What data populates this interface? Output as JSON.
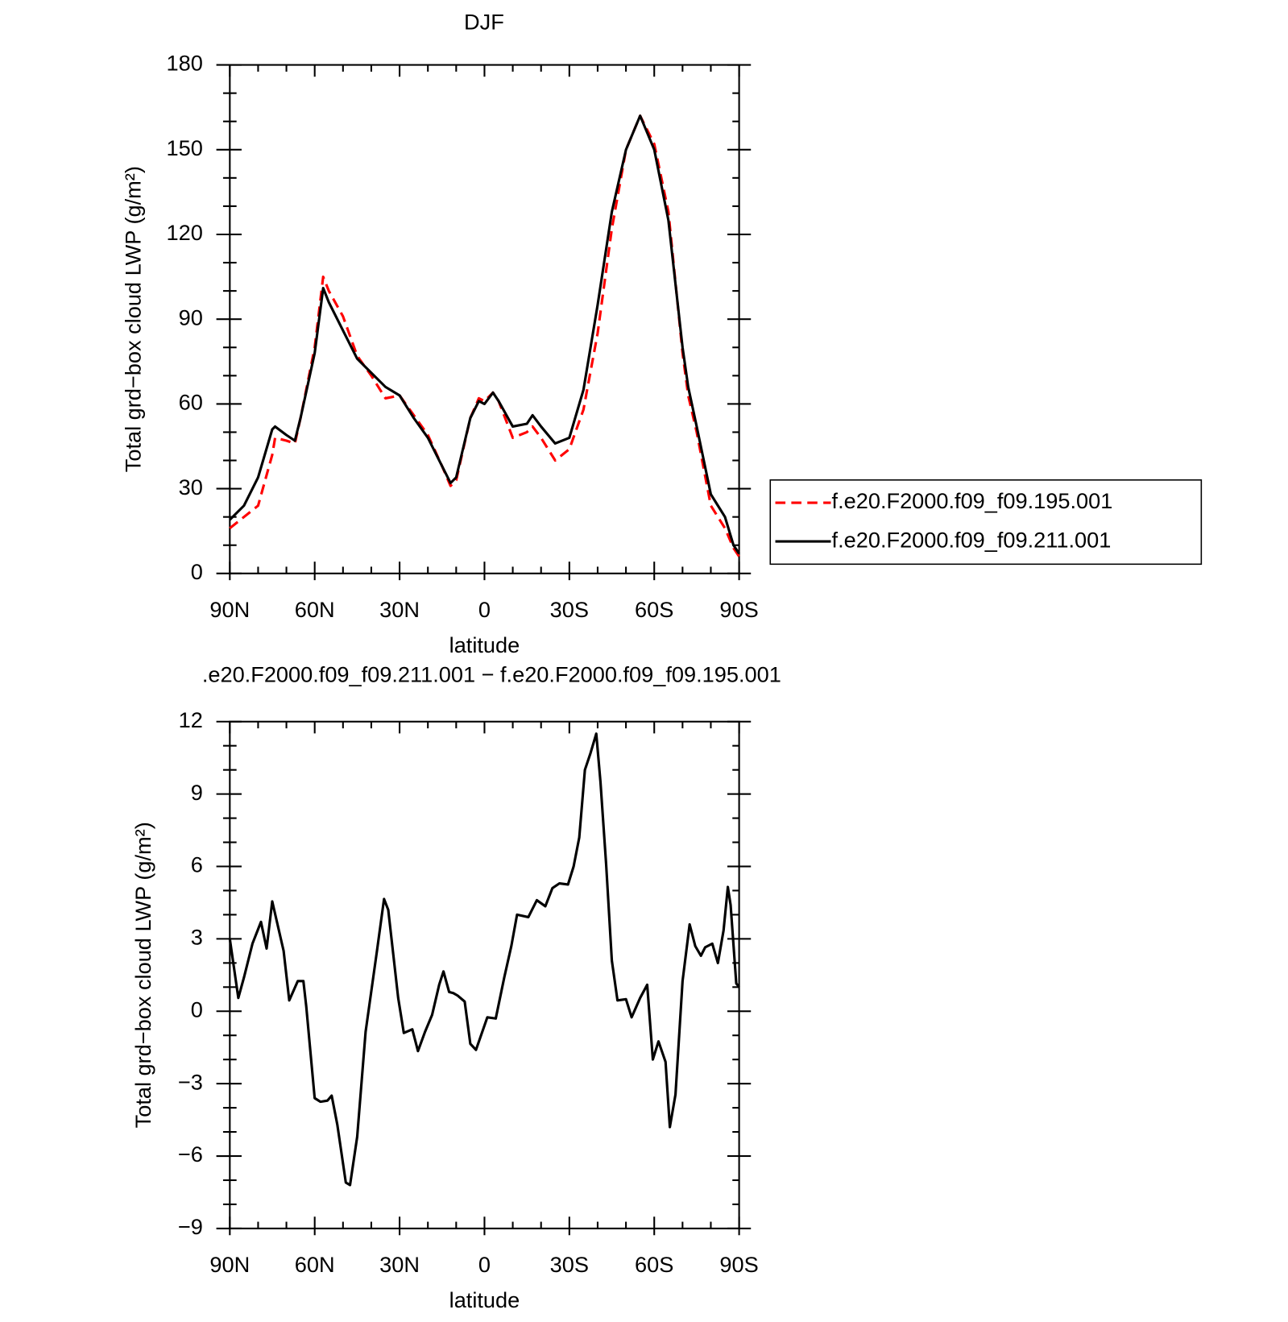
{
  "chart_data": [
    {
      "type": "line",
      "title": "DJF",
      "x_label": "latitude",
      "y_label": "Total grd−box cloud LWP (g/m²)",
      "x": [
        90,
        85,
        80,
        75,
        74,
        70,
        67,
        65,
        60,
        57,
        55,
        50,
        45,
        40,
        35,
        30,
        25,
        20,
        15,
        12,
        10,
        5,
        2,
        0,
        -3,
        -5,
        -10,
        -15,
        -17,
        -20,
        -25,
        -30,
        -35,
        -40,
        -45,
        -50,
        -55,
        -60,
        -65,
        -70,
        -72,
        -75,
        -80,
        -85,
        -88,
        -90
      ],
      "series": [
        {
          "name": "f.e20.F2000.f09_f09.195.001",
          "color": "#ff0000",
          "linestyle": "dashed",
          "values": [
            16,
            20,
            24,
            42,
            48,
            47,
            46,
            55,
            80,
            105,
            100,
            91,
            77,
            70,
            62,
            63,
            56,
            49,
            38,
            31,
            33,
            55,
            62,
            61,
            64,
            61,
            48,
            50,
            52,
            48,
            40,
            44,
            58,
            85,
            122,
            150,
            162,
            152,
            128,
            78,
            63,
            50,
            24,
            16,
            9,
            6
          ]
        },
        {
          "name": "f.e20.F2000.f09_f09.211.001",
          "color": "#000000",
          "linestyle": "solid",
          "values": [
            19,
            24,
            34,
            51,
            52,
            49,
            47,
            55,
            78,
            101,
            96,
            86,
            76,
            71,
            66,
            63,
            55,
            48,
            38,
            32,
            34,
            55,
            61,
            60,
            64,
            61,
            52,
            53,
            56,
            52,
            46,
            48,
            65,
            95,
            128,
            150,
            162,
            150,
            125,
            80,
            66,
            52,
            28,
            20,
            10,
            7
          ]
        }
      ],
      "xlim": [
        90,
        -90
      ],
      "xticks": [
        {
          "value": 90,
          "label": "90N"
        },
        {
          "value": 60,
          "label": "60N"
        },
        {
          "value": 30,
          "label": "30N"
        },
        0,
        {
          "value": -30,
          "label": "30S"
        },
        {
          "value": -60,
          "label": "60S"
        },
        {
          "value": -90,
          "label": "90S"
        }
      ],
      "ylim": [
        0,
        180
      ],
      "yticks": [
        0,
        30,
        60,
        90,
        120,
        150,
        180
      ],
      "legend": "right"
    },
    {
      "type": "line",
      "title": ".e20.F2000.f09_f09.211.001 − f.e20.F2000.f09_f09.195.001",
      "x_label": "latitude",
      "y_label": "Total grd−box cloud LWP (g/m²)",
      "x": [
        90,
        87,
        85,
        82,
        79,
        77,
        75,
        71,
        69,
        66,
        64,
        63,
        60,
        58,
        55.5,
        54,
        52,
        49,
        47.5,
        45,
        42,
        38,
        35.5,
        34,
        30.5,
        28.5,
        25.5,
        23.5,
        21,
        18.5,
        16,
        14.5,
        12.5,
        11,
        9.5,
        7,
        5,
        3,
        -1,
        -4,
        -7,
        -9.5,
        -11.5,
        -15.5,
        -18.5,
        -21.5,
        -24,
        -26.5,
        -29.5,
        -31.5,
        -33.5,
        -35.5,
        -37.5,
        -39.5,
        -41,
        -43,
        -45,
        -47,
        -50,
        -52,
        -55,
        -57.5,
        -59.5,
        -61.5,
        -64,
        -65.5,
        -67.5,
        -70,
        -72.5,
        -74.5,
        -76.5,
        -78,
        -80.5,
        -82.5,
        -84.5,
        -86,
        -87,
        -89,
        -90
      ],
      "series": [
        {
          "color": "#000000",
          "linestyle": "solid",
          "values": [
            3.0,
            0.55,
            1.4,
            2.8,
            3.7,
            2.6,
            4.55,
            2.5,
            0.45,
            1.25,
            1.25,
            0.2,
            -3.6,
            -3.75,
            -3.7,
            -3.5,
            -4.7,
            -7.1,
            -7.2,
            -5.2,
            -0.85,
            2.5,
            4.65,
            4.2,
            0.55,
            -0.9,
            -0.75,
            -1.65,
            -0.85,
            -0.15,
            1.1,
            1.65,
            0.8,
            0.75,
            0.65,
            0.4,
            -1.35,
            -1.6,
            -0.25,
            -0.3,
            1.4,
            2.7,
            4.0,
            3.9,
            4.6,
            4.35,
            5.1,
            5.3,
            5.25,
            6.0,
            7.2,
            10.0,
            10.7,
            11.5,
            9.5,
            6.1,
            2.1,
            0.45,
            0.5,
            -0.25,
            0.55,
            1.1,
            -2.0,
            -1.25,
            -2.1,
            -4.8,
            -3.45,
            1.25,
            3.6,
            2.7,
            2.3,
            2.65,
            2.8,
            2.0,
            3.35,
            5.15,
            4.4,
            1.15,
            1.0
          ]
        }
      ],
      "xlim": [
        90,
        -90
      ],
      "xticks": [
        {
          "value": 90,
          "label": "90N"
        },
        {
          "value": 60,
          "label": "60N"
        },
        {
          "value": 30,
          "label": "30N"
        },
        0,
        {
          "value": -30,
          "label": "30S"
        },
        {
          "value": -60,
          "label": "60S"
        },
        {
          "value": -90,
          "label": "90S"
        }
      ],
      "ylim": [
        -9,
        12
      ],
      "yticks": [
        {
          "value": -9,
          "label": "−9"
        },
        {
          "value": -6,
          "label": "−6"
        },
        {
          "value": -3,
          "label": "−3"
        },
        0,
        3,
        6,
        9,
        12
      ]
    }
  ]
}
